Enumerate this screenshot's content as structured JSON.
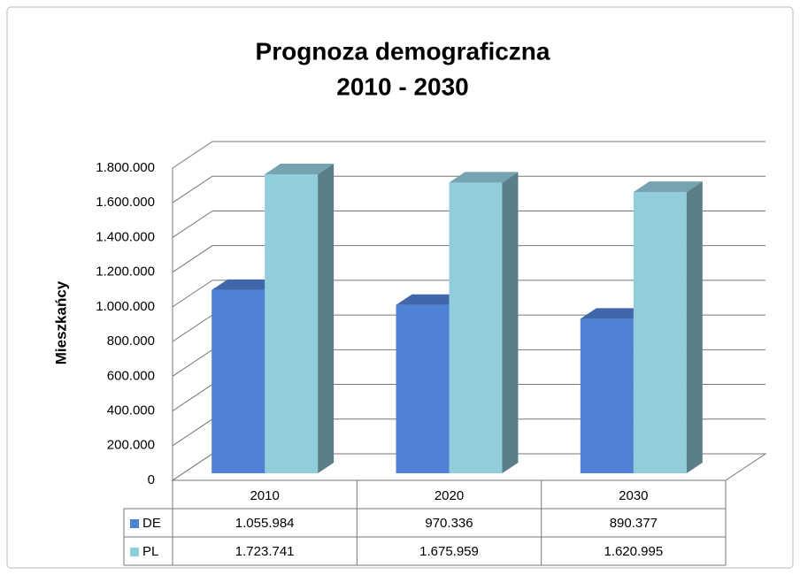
{
  "chart_data": {
    "type": "bar3d",
    "title": [
      "Prognoza demograficzna",
      "2010 - 2030"
    ],
    "y_label": "Mieszkańcy",
    "categories": [
      "2010",
      "2020",
      "2030"
    ],
    "series": [
      {
        "name": "DE",
        "color": "#4f81d5",
        "values": [
          1055984,
          970336,
          890377
        ],
        "value_labels": [
          "1.055.984",
          "970.336",
          "890.377"
        ]
      },
      {
        "name": "PL",
        "color": "#92cddc",
        "values": [
          1723741,
          1675959,
          1620995
        ],
        "value_labels": [
          "1.723.741",
          "1.675.959",
          "1.620.995"
        ]
      }
    ],
    "ylim": [
      0,
      1800000
    ],
    "yticks": [
      0,
      {
        "value": 200000,
        "label": "200.000"
      },
      {
        "value": 400000,
        "label": "400.000"
      },
      {
        "value": 600000,
        "label": "600.000"
      },
      {
        "value": 800000,
        "label": "800.000"
      },
      {
        "value": 1000000,
        "label": "1.000.000"
      },
      {
        "value": 1200000,
        "label": "1.200.000"
      },
      {
        "value": 1400000,
        "label": "1.400.000"
      },
      {
        "value": 1600000,
        "label": "1.600.000"
      },
      {
        "value": 1800000,
        "label": "1.800.000"
      }
    ],
    "grid": true,
    "data_table": true
  }
}
